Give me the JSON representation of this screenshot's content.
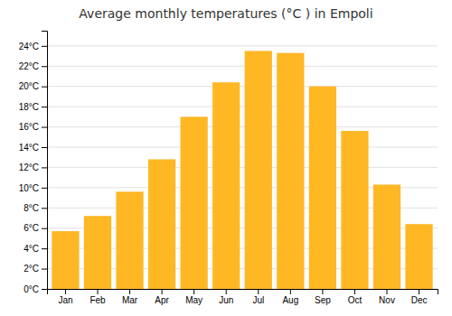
{
  "chart_data": {
    "type": "bar",
    "title": "Average monthly temperatures (°C ) in Empoli",
    "categories": [
      "Jan",
      "Feb",
      "Mar",
      "Apr",
      "May",
      "Jun",
      "Jul",
      "Aug",
      "Sep",
      "Oct",
      "Nov",
      "Dec"
    ],
    "values": [
      5.7,
      7.2,
      9.6,
      12.8,
      17.0,
      20.4,
      23.5,
      23.3,
      20.0,
      15.6,
      10.3,
      6.4
    ],
    "color": "#FFB724",
    "ylim": [
      0,
      25.5
    ],
    "yticks": [
      {
        "value": 0,
        "label": "0°C"
      },
      {
        "value": 2,
        "label": "2°C"
      },
      {
        "value": 4,
        "label": "4°C"
      },
      {
        "value": 6,
        "label": "6°C"
      },
      {
        "value": 8,
        "label": "8°C"
      },
      {
        "value": 10,
        "label": "10°C"
      },
      {
        "value": 12,
        "label": "12°C"
      },
      {
        "value": 14,
        "label": "14°C"
      },
      {
        "value": 16,
        "label": "16°C"
      },
      {
        "value": 18,
        "label": "18°C"
      },
      {
        "value": 20,
        "label": "20°C"
      },
      {
        "value": 22,
        "label": "22°C"
      },
      {
        "value": 24,
        "label": "24°C"
      }
    ],
    "grid": true
  }
}
